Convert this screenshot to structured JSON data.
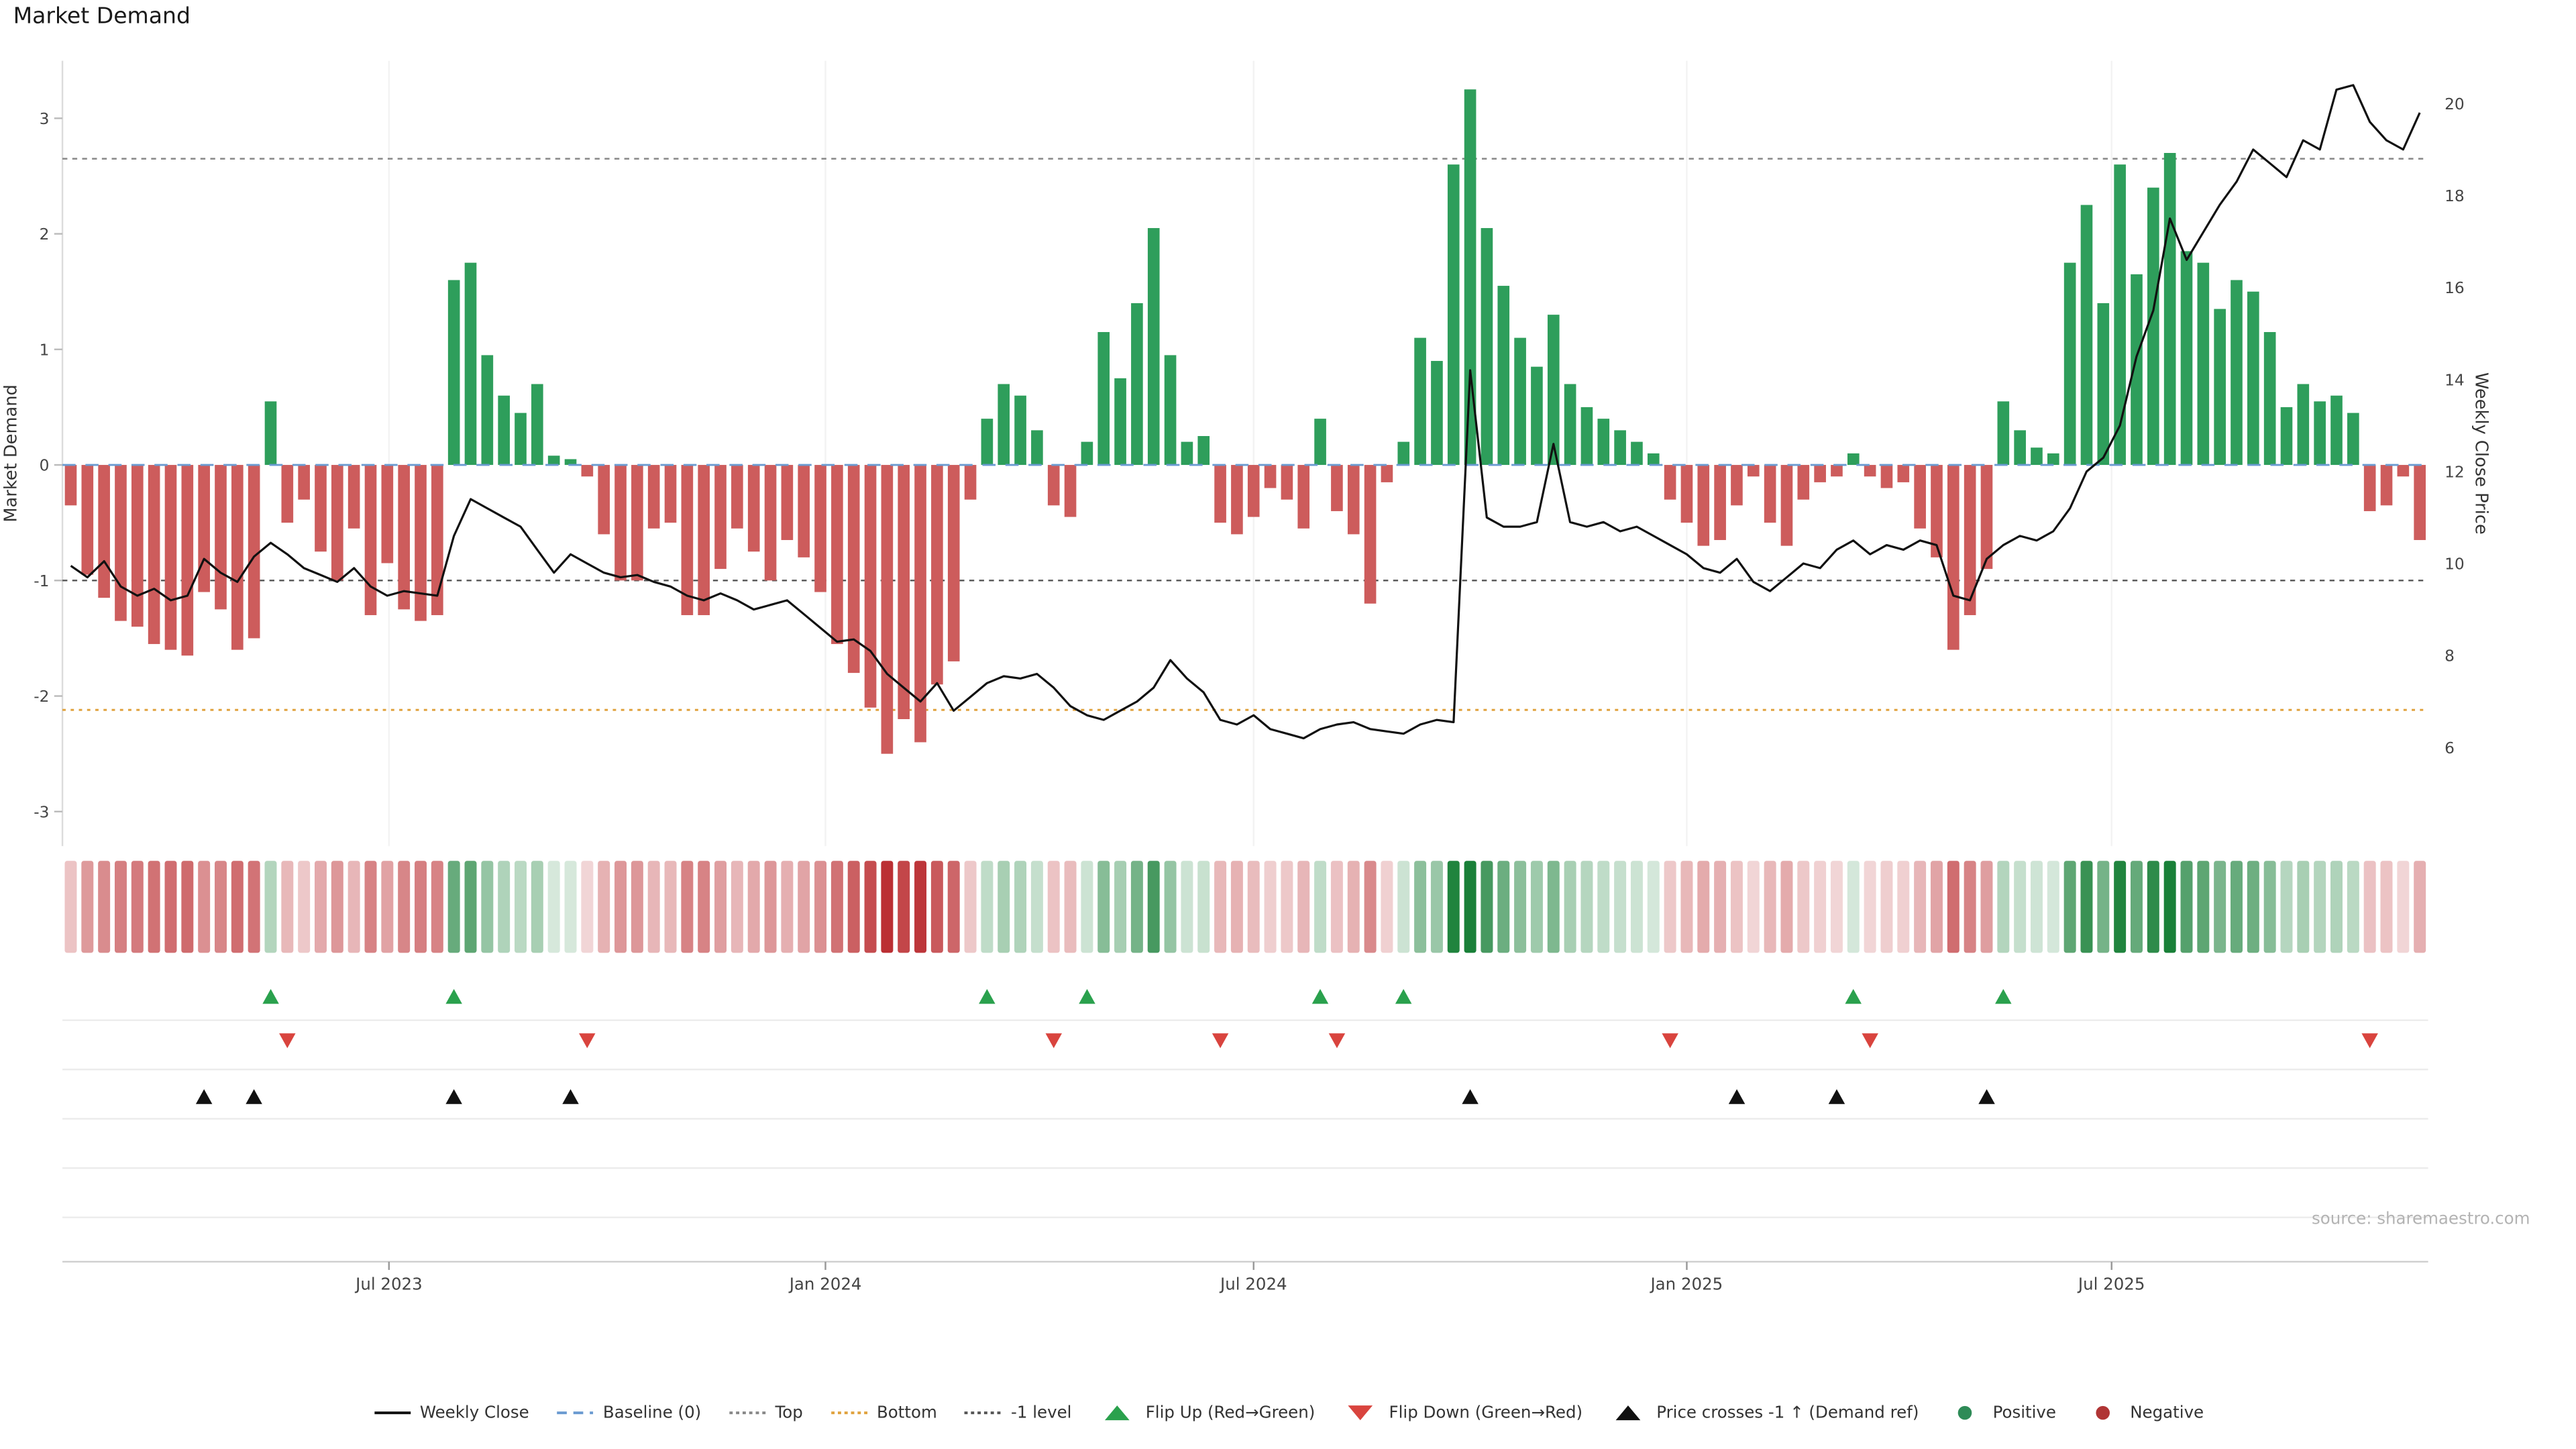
{
  "title": "Market Demand",
  "source": "source: sharemaestro.com",
  "axes": {
    "left_label": "Market Demand",
    "right_label": "Weekly Close Price",
    "left_ticks": [
      3,
      2,
      1,
      0,
      -1,
      -2,
      -3
    ],
    "right_ticks": [
      20,
      18,
      16,
      14,
      12,
      10,
      8,
      6
    ],
    "x_ticks": [
      "Jul 2023",
      "Jan 2024",
      "Jul 2024",
      "Jan 2025",
      "Jul 2025"
    ]
  },
  "colors": {
    "positive": "#2e9e5b",
    "negative": "#cd5c5c",
    "flip_up": "#2aa14d",
    "flip_down": "#d9443e",
    "price_line": "#111111",
    "baseline": "#6b9bd1",
    "top_line": "#888888",
    "bottom_line": "#e0a23e",
    "minus_one_line": "#555555",
    "cross_marker": "#111111",
    "legend_positive_dot": "#2e8b57",
    "legend_negative_dot": "#b03535"
  },
  "legend": [
    {
      "label": "Weekly Close",
      "swatch": "line",
      "color": "#111111",
      "dash": ""
    },
    {
      "label": "Baseline (0)",
      "swatch": "line",
      "color": "#6b9bd1",
      "dash": "6 4"
    },
    {
      "label": "Top",
      "swatch": "line",
      "color": "#888888",
      "dash": "2 2"
    },
    {
      "label": "Bottom",
      "swatch": "line",
      "color": "#e0a23e",
      "dash": "2 2"
    },
    {
      "label": "-1 level",
      "swatch": "line",
      "color": "#555555",
      "dash": "2 2"
    },
    {
      "label": "Flip Up (Red→Green)",
      "swatch": "tri-up",
      "color": "#2aa14d"
    },
    {
      "label": "Flip Down (Green→Red)",
      "swatch": "tri-down",
      "color": "#d9443e"
    },
    {
      "label": "Price crosses -1 ↑ (Demand ref)",
      "swatch": "tri-up",
      "color": "#111111"
    },
    {
      "label": "Positive",
      "swatch": "dot",
      "color": "#2e8b57"
    },
    {
      "label": "Negative",
      "swatch": "dot",
      "color": "#b03535"
    }
  ],
  "chart_data": {
    "type": "bar+line",
    "title": "Market Demand",
    "x_unit": "week_index",
    "n_points": 142,
    "demand_axis": {
      "label": "Market Demand",
      "ticks": [
        3,
        2,
        1,
        0,
        -1,
        -2,
        -3
      ],
      "range": [
        -3.3,
        3.5
      ]
    },
    "price_axis": {
      "label": "Weekly Close Price",
      "ticks": [
        20,
        18,
        16,
        14,
        12,
        10,
        8,
        6
      ],
      "range": [
        3.9,
        20.9
      ]
    },
    "x_axis": {
      "tick_labels": [
        "Jul 2023",
        "Jan 2024",
        "Jul 2024",
        "Jan 2025",
        "Jul 2025"
      ],
      "tick_week_index": [
        19.1,
        45.3,
        71.0,
        97.0,
        122.5
      ]
    },
    "levels": {
      "baseline": 0,
      "top": 2.65,
      "bottom": -2.12,
      "minus_one": -1
    },
    "demand": [
      -0.35,
      -0.95,
      -1.15,
      -1.35,
      -1.4,
      -1.55,
      -1.6,
      -1.65,
      -1.1,
      -1.25,
      -1.6,
      -1.5,
      0.55,
      -0.5,
      -0.3,
      -0.75,
      -1.0,
      -0.55,
      -1.3,
      -0.85,
      -1.25,
      -1.35,
      -1.3,
      1.6,
      1.75,
      0.95,
      0.6,
      0.45,
      0.7,
      0.08,
      0.05,
      -0.1,
      -0.6,
      -1.0,
      -1.0,
      -0.55,
      -0.5,
      -1.3,
      -1.3,
      -0.9,
      -0.55,
      -0.75,
      -1.0,
      -0.65,
      -0.8,
      -1.1,
      -1.55,
      -1.8,
      -2.1,
      -2.5,
      -2.2,
      -2.4,
      -1.9,
      -1.7,
      -0.3,
      0.4,
      0.7,
      0.6,
      0.3,
      -0.35,
      -0.45,
      0.2,
      1.15,
      0.75,
      1.4,
      2.05,
      0.95,
      0.2,
      0.25,
      -0.5,
      -0.6,
      -0.45,
      -0.2,
      -0.3,
      -0.55,
      0.4,
      -0.4,
      -0.6,
      -1.2,
      -0.15,
      0.2,
      1.1,
      0.9,
      2.6,
      3.25,
      2.05,
      1.55,
      1.1,
      0.85,
      1.3,
      0.7,
      0.5,
      0.4,
      0.3,
      0.2,
      0.1,
      -0.3,
      -0.5,
      -0.7,
      -0.65,
      -0.35,
      -0.1,
      -0.5,
      -0.7,
      -0.3,
      -0.15,
      -0.1,
      0.1,
      -0.1,
      -0.2,
      -0.15,
      -0.55,
      -0.8,
      -1.6,
      -1.3,
      -0.9,
      0.55,
      0.3,
      0.15,
      0.1,
      1.75,
      2.25,
      1.4,
      2.6,
      1.65,
      2.4,
      2.7,
      1.85,
      1.75,
      1.35,
      1.6,
      1.5,
      1.15,
      0.5,
      0.7,
      0.55,
      0.6,
      0.45,
      -0.4,
      -0.35,
      -0.1,
      -0.65
    ],
    "price": [
      9.95,
      9.7,
      10.05,
      9.5,
      9.3,
      9.45,
      9.2,
      9.3,
      10.1,
      9.8,
      9.6,
      10.15,
      10.45,
      10.2,
      9.9,
      9.75,
      9.6,
      9.9,
      9.5,
      9.3,
      9.4,
      9.35,
      9.3,
      10.6,
      11.4,
      11.2,
      11.0,
      10.8,
      10.3,
      9.8,
      10.2,
      10.0,
      9.8,
      9.7,
      9.75,
      9.6,
      9.5,
      9.3,
      9.2,
      9.35,
      9.2,
      9.0,
      9.1,
      9.2,
      8.9,
      8.6,
      8.3,
      8.35,
      8.1,
      7.6,
      7.3,
      7.0,
      7.4,
      6.8,
      7.1,
      7.4,
      7.55,
      7.5,
      7.6,
      7.3,
      6.9,
      6.7,
      6.6,
      6.8,
      7.0,
      7.3,
      7.9,
      7.5,
      7.2,
      6.6,
      6.5,
      6.7,
      6.4,
      6.3,
      6.2,
      6.4,
      6.5,
      6.55,
      6.4,
      6.35,
      6.3,
      6.5,
      6.6,
      6.55,
      14.2,
      11.0,
      10.8,
      10.8,
      10.9,
      12.6,
      10.9,
      10.8,
      10.9,
      10.7,
      10.8,
      10.6,
      10.4,
      10.2,
      9.9,
      9.8,
      10.1,
      9.6,
      9.4,
      9.7,
      10.0,
      9.9,
      10.3,
      10.5,
      10.2,
      10.4,
      10.3,
      10.5,
      10.4,
      9.3,
      9.2,
      10.1,
      10.4,
      10.6,
      10.5,
      10.7,
      11.2,
      12.0,
      12.3,
      13.0,
      14.5,
      15.5,
      17.5,
      16.6,
      17.2,
      17.8,
      18.3,
      19.0,
      18.7,
      18.4,
      19.2,
      19.0,
      20.3,
      20.4,
      19.6,
      19.2,
      19.0,
      19.8
    ],
    "markers": {
      "flip_up_weeks": [
        12,
        23,
        55,
        61,
        75,
        80,
        107,
        116
      ],
      "flip_down_weeks": [
        13,
        31,
        59,
        69,
        76,
        96,
        108,
        138
      ],
      "price_cross_weeks": [
        8,
        11,
        23,
        30,
        84,
        100,
        106,
        115
      ]
    },
    "heatmap": "demand_intensity_strip"
  }
}
